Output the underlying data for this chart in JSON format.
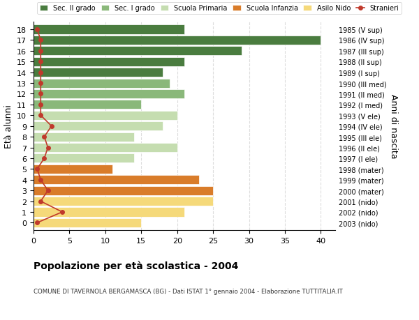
{
  "ages": [
    18,
    17,
    16,
    15,
    14,
    13,
    12,
    11,
    10,
    9,
    8,
    7,
    6,
    5,
    4,
    3,
    2,
    1,
    0
  ],
  "years": [
    "1985 (V sup)",
    "1986 (IV sup)",
    "1987 (III sup)",
    "1988 (II sup)",
    "1989 (I sup)",
    "1990 (III med)",
    "1991 (II med)",
    "1992 (I med)",
    "1993 (V ele)",
    "1994 (IV ele)",
    "1995 (III ele)",
    "1996 (II ele)",
    "1997 (I ele)",
    "1998 (mater)",
    "1999 (mater)",
    "2000 (mater)",
    "2001 (nido)",
    "2002 (nido)",
    "2003 (nido)"
  ],
  "bar_values": [
    21,
    40,
    29,
    21,
    18,
    19,
    21,
    15,
    20,
    18,
    14,
    20,
    14,
    11,
    23,
    25,
    25,
    21,
    15
  ],
  "bar_colors": [
    "#4a7c3f",
    "#4a7c3f",
    "#4a7c3f",
    "#4a7c3f",
    "#4a7c3f",
    "#8ab87a",
    "#8ab87a",
    "#8ab87a",
    "#c5ddb0",
    "#c5ddb0",
    "#c5ddb0",
    "#c5ddb0",
    "#c5ddb0",
    "#d97c2a",
    "#d97c2a",
    "#d97c2a",
    "#f5d97a",
    "#f5d97a",
    "#f5d97a"
  ],
  "stranieri_values": [
    0.5,
    1,
    1,
    1,
    1,
    1,
    1,
    1,
    1,
    2.5,
    1.5,
    2,
    1.5,
    0.5,
    1,
    2,
    1,
    4,
    0.5
  ],
  "legend_labels": [
    "Sec. II grado",
    "Sec. I grado",
    "Scuola Primaria",
    "Scuola Infanzia",
    "Asilo Nido",
    "Stranieri"
  ],
  "legend_colors": [
    "#4a7c3f",
    "#8ab87a",
    "#c5ddb0",
    "#d97c2a",
    "#f5d97a",
    "#c0392b"
  ],
  "title": "Popolazione per età scolastica - 2004",
  "subtitle": "COMUNE DI TAVERNOLA BERGAMASCA (BG) - Dati ISTAT 1° gennaio 2004 - Elaborazione TUTTITALIA.IT",
  "ylabel_left": "Età alunni",
  "ylabel_right": "Anni di nascita",
  "xlim": [
    0,
    42
  ],
  "background_color": "#ffffff",
  "grid_color": "#dddddd",
  "bar_height": 0.85
}
